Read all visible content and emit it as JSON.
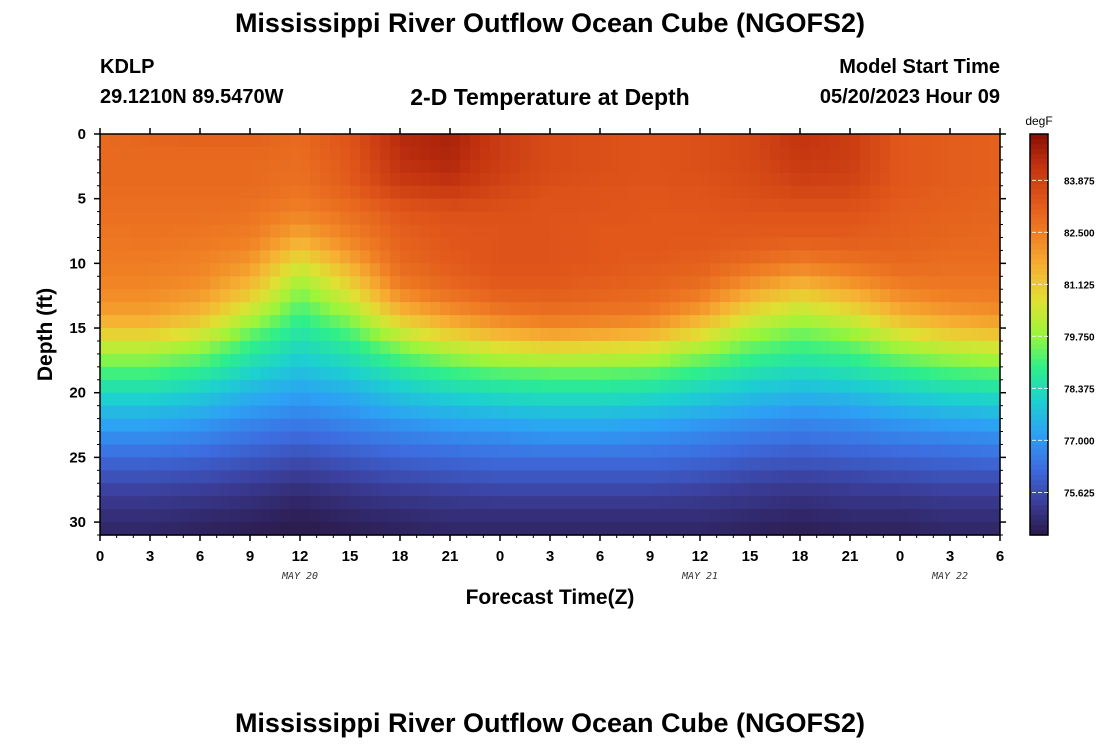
{
  "header": {
    "title": "Mississippi River Outflow Ocean Cube (NGOFS2)",
    "station": "KDLP",
    "coords": "29.1210N  89.5470W",
    "subtitle": "2-D Temperature at Depth",
    "start_label": "Model Start Time",
    "start_value": "05/20/2023 Hour 09"
  },
  "footer": {
    "title": "Mississippi River Outflow Ocean Cube (NGOFS2)"
  },
  "chart_data": {
    "type": "heatmap",
    "title": "2-D Temperature at Depth",
    "xlabel": "Forecast Time(Z)",
    "ylabel": "Depth (ft)",
    "x_tick_labels": [
      "0",
      "3",
      "6",
      "9",
      "12",
      "15",
      "18",
      "21",
      "0",
      "3",
      "6",
      "9",
      "12",
      "15",
      "18",
      "21",
      "0",
      "3",
      "6"
    ],
    "x_range_hours": [
      0,
      54
    ],
    "date_labels": [
      {
        "label": "MAY 20",
        "hour": 12
      },
      {
        "label": "MAY 21",
        "hour": 36
      },
      {
        "label": "MAY 22",
        "hour": 51
      }
    ],
    "y_ticks": [
      0,
      5,
      10,
      15,
      20,
      25,
      30
    ],
    "y_range": [
      0,
      31
    ],
    "y_inverted": true,
    "colorbar": {
      "unit": "degF",
      "range": [
        74.5,
        85.1
      ],
      "ticks": [
        "83.875",
        "82.500",
        "81.125",
        "79.750",
        "78.375",
        "77.000",
        "75.625"
      ],
      "colors": [
        "#2b1a4a",
        "#3b3f9c",
        "#3d6de0",
        "#2da0f5",
        "#1cd0d0",
        "#2eef8a",
        "#9cf53a",
        "#e0e033",
        "#f6b233",
        "#f07f24",
        "#e0561a",
        "#c43410",
        "#8a0e04"
      ]
    },
    "depth_ft": [
      0,
      1,
      2,
      3,
      4,
      5,
      6,
      7,
      8,
      9,
      10,
      11,
      12,
      13,
      14,
      15,
      16,
      17,
      18,
      19,
      20,
      21,
      22,
      23,
      24,
      25,
      26,
      27,
      28,
      29,
      30,
      31
    ],
    "hour": [
      0,
      3,
      6,
      9,
      12,
      15,
      18,
      21,
      24,
      27,
      30,
      33,
      36,
      39,
      42,
      45,
      48,
      51,
      54
    ],
    "temperature_degF": [
      [
        82.9,
        83.0,
        83.1,
        83.1,
        82.9,
        83.4,
        84.4,
        84.6,
        84.0,
        83.6,
        83.5,
        83.4,
        83.5,
        83.7,
        84.2,
        84.0,
        83.3,
        83.2,
        83.1
      ],
      [
        82.9,
        83.0,
        83.0,
        83.0,
        82.9,
        83.4,
        84.4,
        84.6,
        84.0,
        83.6,
        83.5,
        83.4,
        83.5,
        83.7,
        84.2,
        84.0,
        83.3,
        83.2,
        83.1
      ],
      [
        82.9,
        82.9,
        82.9,
        82.9,
        82.8,
        83.3,
        84.3,
        84.5,
        84.0,
        83.6,
        83.5,
        83.4,
        83.5,
        83.7,
        84.1,
        84.0,
        83.3,
        83.2,
        83.1
      ],
      [
        82.9,
        82.9,
        82.9,
        82.9,
        82.8,
        83.3,
        84.2,
        84.4,
        83.9,
        83.6,
        83.5,
        83.4,
        83.5,
        83.6,
        84.0,
        83.9,
        83.3,
        83.2,
        83.1
      ],
      [
        82.9,
        82.9,
        82.9,
        82.9,
        82.7,
        83.2,
        84.0,
        84.2,
        83.8,
        83.5,
        83.4,
        83.4,
        83.4,
        83.6,
        83.8,
        83.8,
        83.3,
        83.2,
        83.1
      ],
      [
        82.8,
        82.8,
        82.8,
        82.8,
        82.6,
        83.0,
        83.6,
        83.8,
        83.6,
        83.4,
        83.4,
        83.3,
        83.4,
        83.5,
        83.6,
        83.6,
        83.2,
        83.1,
        83.0
      ],
      [
        82.8,
        82.8,
        82.8,
        82.7,
        82.4,
        82.8,
        83.3,
        83.5,
        83.5,
        83.4,
        83.4,
        83.3,
        83.3,
        83.4,
        83.4,
        83.4,
        83.2,
        83.1,
        83.0
      ],
      [
        82.7,
        82.7,
        82.7,
        82.6,
        82.1,
        82.6,
        83.2,
        83.4,
        83.4,
        83.4,
        83.3,
        83.3,
        83.3,
        83.3,
        83.3,
        83.3,
        83.1,
        83.0,
        83.0
      ],
      [
        82.6,
        82.7,
        82.6,
        82.5,
        81.7,
        82.4,
        83.1,
        83.3,
        83.4,
        83.4,
        83.3,
        83.3,
        83.3,
        83.2,
        83.2,
        83.2,
        83.1,
        83.0,
        82.9
      ],
      [
        82.6,
        82.6,
        82.5,
        82.3,
        81.2,
        82.1,
        83.0,
        83.3,
        83.4,
        83.4,
        83.3,
        83.3,
        83.2,
        83.1,
        82.9,
        83.0,
        83.0,
        82.9,
        82.9
      ],
      [
        82.5,
        82.5,
        82.4,
        82.0,
        80.6,
        81.7,
        82.9,
        83.2,
        83.4,
        83.4,
        83.3,
        83.2,
        83.1,
        82.8,
        82.5,
        82.7,
        82.9,
        82.8,
        82.8
      ],
      [
        82.4,
        82.4,
        82.3,
        81.7,
        80.1,
        81.2,
        82.7,
        83.1,
        83.3,
        83.3,
        83.2,
        83.1,
        83.0,
        82.4,
        81.9,
        82.3,
        82.7,
        82.7,
        82.7
      ],
      [
        82.3,
        82.3,
        82.1,
        81.3,
        79.7,
        80.8,
        82.4,
        82.9,
        83.2,
        83.2,
        83.1,
        83.0,
        82.7,
        81.9,
        81.3,
        81.8,
        82.4,
        82.6,
        82.6
      ],
      [
        82.1,
        82.1,
        81.8,
        80.8,
        79.3,
        80.3,
        81.9,
        82.5,
        82.9,
        83.0,
        82.9,
        82.8,
        82.3,
        81.3,
        80.7,
        81.2,
        82.0,
        82.3,
        82.4
      ],
      [
        81.8,
        81.8,
        81.4,
        80.2,
        79.0,
        79.8,
        81.3,
        82.0,
        82.5,
        82.7,
        82.6,
        82.5,
        81.8,
        80.7,
        80.1,
        80.6,
        81.5,
        81.9,
        82.1
      ],
      [
        81.3,
        81.3,
        80.8,
        79.6,
        78.7,
        79.3,
        80.6,
        81.4,
        81.9,
        82.2,
        82.1,
        81.9,
        81.1,
        80.1,
        79.6,
        80.0,
        80.9,
        81.4,
        81.6
      ],
      [
        80.6,
        80.6,
        80.1,
        79.1,
        78.4,
        78.9,
        79.9,
        80.6,
        81.1,
        81.4,
        81.3,
        81.1,
        80.4,
        79.6,
        79.2,
        79.5,
        80.2,
        80.7,
        80.9
      ],
      [
        79.9,
        79.9,
        79.5,
        78.7,
        78.1,
        78.5,
        79.3,
        79.9,
        80.3,
        80.5,
        80.4,
        80.3,
        79.7,
        79.1,
        78.8,
        79.0,
        79.6,
        80.0,
        80.2
      ],
      [
        79.3,
        79.3,
        79.0,
        78.3,
        77.8,
        78.2,
        78.8,
        79.2,
        79.5,
        79.6,
        79.6,
        79.5,
        79.1,
        78.7,
        78.4,
        78.6,
        79.0,
        79.3,
        79.5
      ],
      [
        78.8,
        78.8,
        78.5,
        77.9,
        77.5,
        77.8,
        78.3,
        78.7,
        78.9,
        79.0,
        79.0,
        78.9,
        78.6,
        78.2,
        78.0,
        78.2,
        78.5,
        78.8,
        78.9
      ],
      [
        78.3,
        78.3,
        78.0,
        77.5,
        77.2,
        77.4,
        77.9,
        78.2,
        78.4,
        78.5,
        78.5,
        78.4,
        78.1,
        77.8,
        77.6,
        77.7,
        78.0,
        78.3,
        78.4
      ],
      [
        77.8,
        77.8,
        77.6,
        77.2,
        76.9,
        77.1,
        77.5,
        77.7,
        77.9,
        78.0,
        78.0,
        77.9,
        77.7,
        77.4,
        77.2,
        77.3,
        77.6,
        77.8,
        77.9
      ],
      [
        77.4,
        77.4,
        77.2,
        76.8,
        76.6,
        76.8,
        77.1,
        77.3,
        77.4,
        77.5,
        77.5,
        77.4,
        77.2,
        77.0,
        76.8,
        76.9,
        77.1,
        77.3,
        77.4
      ],
      [
        77.0,
        77.0,
        76.8,
        76.5,
        76.3,
        76.5,
        76.7,
        76.9,
        77.0,
        77.1,
        77.1,
        77.0,
        76.8,
        76.6,
        76.5,
        76.6,
        76.8,
        76.9,
        77.0
      ],
      [
        76.6,
        76.6,
        76.5,
        76.2,
        76.0,
        76.2,
        76.4,
        76.5,
        76.6,
        76.7,
        76.7,
        76.6,
        76.5,
        76.3,
        76.2,
        76.3,
        76.4,
        76.5,
        76.6
      ],
      [
        76.2,
        76.2,
        76.1,
        75.9,
        75.7,
        75.9,
        76.1,
        76.2,
        76.3,
        76.3,
        76.3,
        76.3,
        76.2,
        76.0,
        75.9,
        76.0,
        76.1,
        76.2,
        76.3
      ],
      [
        75.9,
        75.9,
        75.8,
        75.6,
        75.4,
        75.6,
        75.8,
        75.9,
        76.0,
        76.0,
        76.0,
        76.0,
        75.9,
        75.7,
        75.6,
        75.7,
        75.8,
        75.9,
        75.9
      ],
      [
        75.6,
        75.6,
        75.5,
        75.3,
        75.1,
        75.3,
        75.5,
        75.6,
        75.7,
        75.7,
        75.7,
        75.7,
        75.6,
        75.4,
        75.3,
        75.4,
        75.5,
        75.6,
        75.6
      ],
      [
        75.3,
        75.3,
        75.2,
        75.1,
        74.9,
        75.1,
        75.2,
        75.3,
        75.4,
        75.4,
        75.4,
        75.4,
        75.3,
        75.2,
        75.1,
        75.2,
        75.2,
        75.3,
        75.3
      ],
      [
        75.1,
        75.1,
        75.0,
        74.9,
        74.7,
        74.9,
        75.0,
        75.1,
        75.1,
        75.1,
        75.1,
        75.1,
        75.1,
        75.0,
        74.9,
        75.0,
        75.0,
        75.1,
        75.1
      ],
      [
        74.9,
        74.9,
        74.8,
        74.7,
        74.6,
        74.7,
        74.8,
        74.9,
        74.9,
        74.9,
        74.9,
        74.9,
        74.9,
        74.8,
        74.7,
        74.8,
        74.8,
        74.9,
        74.9
      ],
      [
        74.8,
        74.8,
        74.7,
        74.6,
        74.5,
        74.6,
        74.7,
        74.8,
        74.8,
        74.8,
        74.8,
        74.8,
        74.8,
        74.7,
        74.6,
        74.7,
        74.7,
        74.8,
        74.8
      ]
    ]
  }
}
